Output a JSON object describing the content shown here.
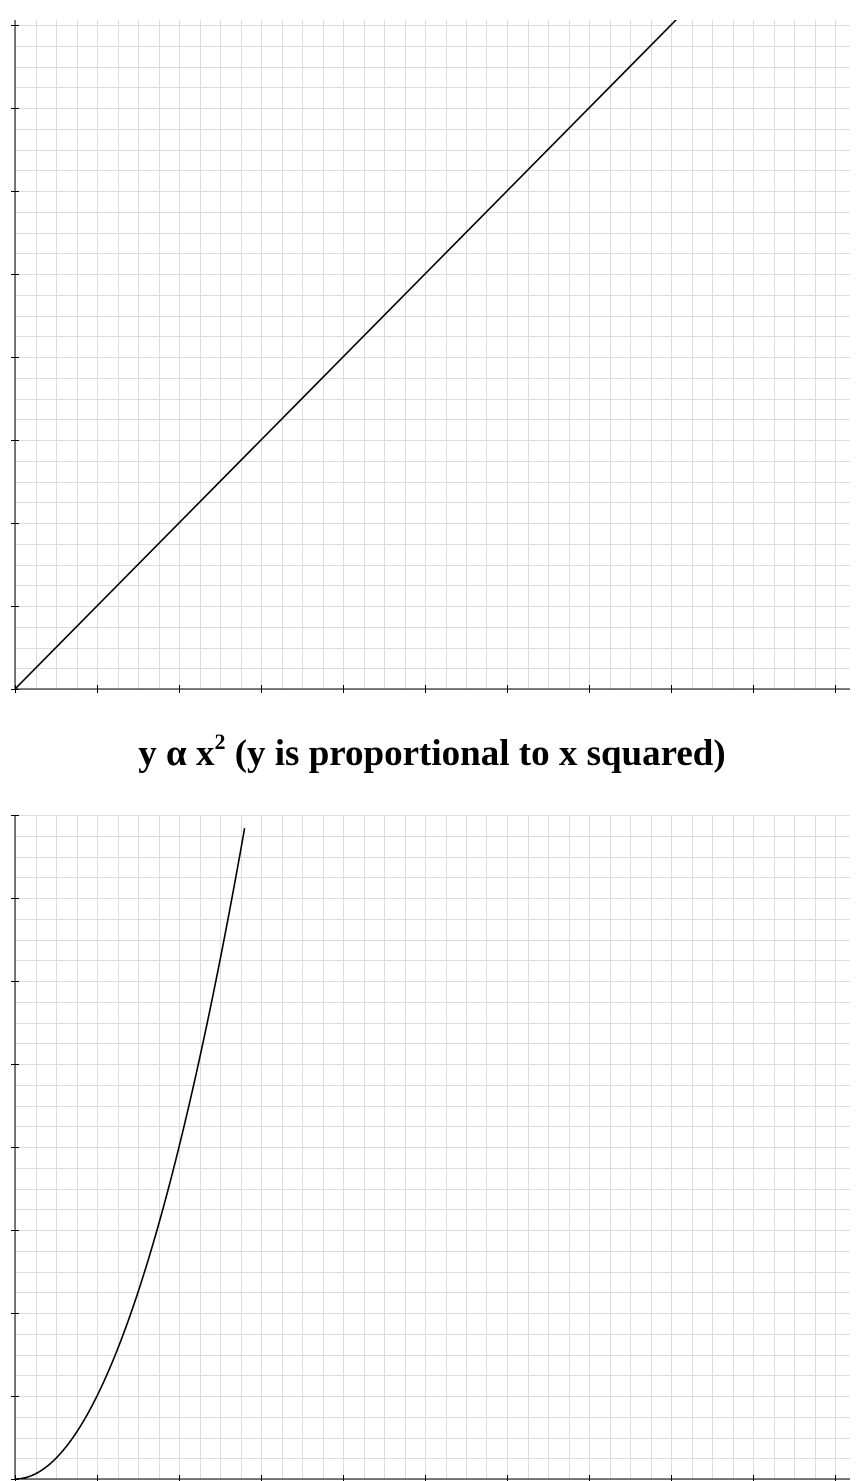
{
  "colors": {
    "grid": "#dcdcdc",
    "axis": "#000000",
    "curve": "#000000",
    "background": "#ffffff"
  },
  "charts": [
    {
      "title": {
        "prefix": "y α x",
        "superscript": "",
        "suffix": ""
      }
    },
    {
      "title": {
        "prefix": "y α x",
        "superscript": "2",
        "suffix": " (y is proportional to x squared)"
      }
    }
  ],
  "chart_data": [
    {
      "type": "line",
      "title": "",
      "xlabel": "",
      "ylabel": "",
      "xlim": [
        0,
        10
      ],
      "ylim": [
        0,
        8
      ],
      "x_ticks": [
        0,
        1,
        2,
        3,
        4,
        5,
        6,
        7,
        8,
        9,
        10
      ],
      "y_ticks": [
        0,
        1,
        2,
        3,
        4,
        5,
        6,
        7,
        8
      ],
      "grid": true,
      "minor_divisions": 4,
      "series": [
        {
          "x": [
            0,
            8.1
          ],
          "y": [
            0,
            8.1
          ]
        }
      ]
    },
    {
      "type": "line",
      "title": "y α x² (y is proportional to x squared)",
      "xlabel": "",
      "ylabel": "",
      "xlim": [
        0,
        10
      ],
      "ylim": [
        0,
        8
      ],
      "x_ticks": [
        0,
        1,
        2,
        3,
        4,
        5,
        6,
        7,
        8,
        9,
        10
      ],
      "y_ticks": [
        0,
        1,
        2,
        3,
        4,
        5,
        6,
        7,
        8
      ],
      "grid": true,
      "minor_divisions": 4,
      "series": [
        {
          "x": [
            0,
            0.25,
            0.5,
            0.75,
            1.0,
            1.25,
            1.5,
            1.75,
            2.0,
            2.25,
            2.5,
            2.8
          ],
          "y": [
            0,
            0.0625,
            0.25,
            0.5625,
            1.0,
            1.5625,
            2.25,
            3.0625,
            4.0,
            5.0625,
            6.25,
            7.84
          ]
        }
      ]
    }
  ]
}
